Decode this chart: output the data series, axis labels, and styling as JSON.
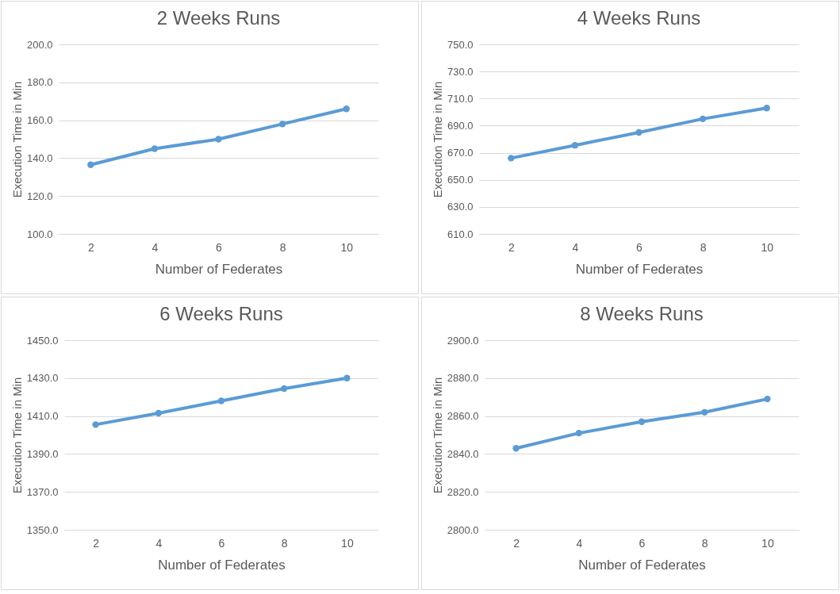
{
  "chart_data": [
    {
      "type": "line",
      "title": "2 Weeks Runs",
      "xlabel": "Number of Federates",
      "ylabel": "Execution Time in Min",
      "categories": [
        "2",
        "4",
        "6",
        "8",
        "10"
      ],
      "series": [
        {
          "color": "#5b9bd5",
          "values": [
            136.5,
            145,
            150,
            158,
            166
          ]
        }
      ],
      "ylim": [
        100,
        200
      ],
      "yticks": [
        {
          "value": 100,
          "label": "100.0"
        },
        {
          "value": 120,
          "label": "120.0"
        },
        {
          "value": 140,
          "label": "140.0"
        },
        {
          "value": 160,
          "label": "160.0"
        },
        {
          "value": 180,
          "label": "180.0"
        },
        {
          "value": 200,
          "label": "200.0"
        }
      ],
      "grid": "y",
      "marker": "circle",
      "line_style": "solid",
      "legend": false
    },
    {
      "type": "line",
      "title": "4 Weeks Runs",
      "xlabel": "Number of Federates",
      "ylabel": "Execution Time in Min",
      "categories": [
        "2",
        "4",
        "6",
        "8",
        "10"
      ],
      "series": [
        {
          "color": "#5b9bd5",
          "values": [
            666,
            675.5,
            685,
            695,
            703
          ]
        }
      ],
      "ylim": [
        610,
        750
      ],
      "yticks": [
        {
          "value": 610,
          "label": "610.0"
        },
        {
          "value": 630,
          "label": "630.0"
        },
        {
          "value": 650,
          "label": "650.0"
        },
        {
          "value": 670,
          "label": "670.0"
        },
        {
          "value": 690,
          "label": "690.0"
        },
        {
          "value": 710,
          "label": "710.0"
        },
        {
          "value": 730,
          "label": "730.0"
        },
        {
          "value": 750,
          "label": "750.0"
        }
      ],
      "grid": "y",
      "marker": "circle",
      "line_style": "solid",
      "legend": false
    },
    {
      "type": "line",
      "title": "6 Weeks Runs",
      "xlabel": "Number of Federates",
      "ylabel": "Execution Time in Min",
      "categories": [
        "2",
        "4",
        "6",
        "8",
        "10"
      ],
      "series": [
        {
          "color": "#5b9bd5",
          "values": [
            1405.5,
            1411.5,
            1418,
            1424.5,
            1430
          ]
        }
      ],
      "ylim": [
        1350,
        1450
      ],
      "yticks": [
        {
          "value": 1350,
          "label": "1350.0"
        },
        {
          "value": 1370,
          "label": "1370.0"
        },
        {
          "value": 1390,
          "label": "1390.0"
        },
        {
          "value": 1410,
          "label": "1410.0"
        },
        {
          "value": 1430,
          "label": "1430.0"
        },
        {
          "value": 1450,
          "label": "1450.0"
        }
      ],
      "grid": "y",
      "marker": "circle",
      "line_style": "solid",
      "legend": false
    },
    {
      "type": "line",
      "title": "8 Weeks Runs",
      "xlabel": "Number of Federates",
      "ylabel": "Execution Time in Min",
      "categories": [
        "2",
        "4",
        "6",
        "8",
        "10"
      ],
      "series": [
        {
          "color": "#5b9bd5",
          "values": [
            2843,
            2851,
            2857,
            2862,
            2869
          ]
        }
      ],
      "ylim": [
        2800,
        2900
      ],
      "yticks": [
        {
          "value": 2800,
          "label": "2800.0"
        },
        {
          "value": 2820,
          "label": "2820.0"
        },
        {
          "value": 2840,
          "label": "2840.0"
        },
        {
          "value": 2860,
          "label": "2860.0"
        },
        {
          "value": 2880,
          "label": "2880.0"
        },
        {
          "value": 2900,
          "label": "2900.0"
        }
      ],
      "grid": "y",
      "marker": "circle",
      "line_style": "solid",
      "legend": false
    }
  ]
}
